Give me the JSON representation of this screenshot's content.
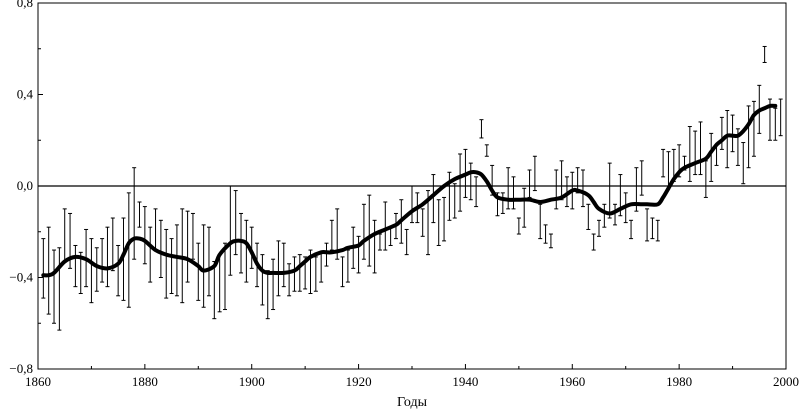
{
  "chart_data": {
    "type": "line",
    "title": "",
    "xlabel": "Годы",
    "ylabel": "",
    "xlim": [
      1860,
      2000
    ],
    "ylim": [
      -0.8,
      0.8
    ],
    "grid": false,
    "reference_line_y": 0.0,
    "x_ticks": [
      1860,
      1880,
      1900,
      1920,
      1940,
      1960,
      1980,
      2000
    ],
    "x_tick_labels": [
      "1860",
      "1880",
      "1900",
      "1920",
      "1940",
      "1960",
      "1980",
      "2000"
    ],
    "y_ticks": [
      -0.8,
      -0.4,
      0.0,
      0.4,
      0.8
    ],
    "y_tick_labels": [
      "−0,8",
      "−0,4",
      "0,0",
      "0,4",
      "0,8"
    ],
    "series": [
      {
        "kind": "annual_error_bars",
        "x": [
          1861,
          1862,
          1863,
          1864,
          1865,
          1866,
          1867,
          1868,
          1869,
          1870,
          1871,
          1872,
          1873,
          1874,
          1875,
          1876,
          1877,
          1878,
          1879,
          1880,
          1881,
          1882,
          1883,
          1884,
          1885,
          1886,
          1887,
          1888,
          1889,
          1890,
          1891,
          1892,
          1893,
          1894,
          1895,
          1896,
          1897,
          1898,
          1899,
          1900,
          1901,
          1902,
          1903,
          1904,
          1905,
          1906,
          1907,
          1908,
          1909,
          1910,
          1911,
          1912,
          1913,
          1914,
          1915,
          1916,
          1917,
          1918,
          1919,
          1920,
          1921,
          1922,
          1923,
          1924,
          1925,
          1926,
          1927,
          1928,
          1929,
          1930,
          1931,
          1932,
          1933,
          1934,
          1935,
          1936,
          1937,
          1938,
          1939,
          1940,
          1941,
          1942,
          1943,
          1944,
          1945,
          1946,
          1947,
          1948,
          1949,
          1950,
          1951,
          1952,
          1953,
          1954,
          1955,
          1956,
          1957,
          1958,
          1959,
          1960,
          1961,
          1962,
          1963,
          1964,
          1965,
          1966,
          1967,
          1968,
          1969,
          1970,
          1971,
          1972,
          1973,
          1974,
          1975,
          1976,
          1977,
          1978,
          1979,
          1980,
          1981,
          1982,
          1983,
          1984,
          1985,
          1986,
          1987,
          1988,
          1989,
          1990,
          1991,
          1992,
          1993,
          1994,
          1995,
          1996,
          1997,
          1998,
          1999
        ],
        "low": [
          -0.49,
          -0.56,
          -0.6,
          -0.63,
          -0.33,
          -0.36,
          -0.44,
          -0.47,
          -0.44,
          -0.51,
          -0.46,
          -0.42,
          -0.44,
          -0.37,
          -0.48,
          -0.5,
          -0.53,
          -0.32,
          -0.18,
          -0.34,
          -0.42,
          -0.28,
          -0.4,
          -0.49,
          -0.47,
          -0.48,
          -0.51,
          -0.42,
          -0.32,
          -0.5,
          -0.53,
          -0.48,
          -0.58,
          -0.55,
          -0.54,
          -0.39,
          -0.3,
          -0.38,
          -0.42,
          -0.36,
          -0.44,
          -0.52,
          -0.58,
          -0.54,
          -0.48,
          -0.44,
          -0.48,
          -0.46,
          -0.46,
          -0.45,
          -0.47,
          -0.46,
          -0.42,
          -0.35,
          -0.28,
          -0.32,
          -0.44,
          -0.42,
          -0.36,
          -0.38,
          -0.32,
          -0.35,
          -0.38,
          -0.28,
          -0.28,
          -0.26,
          -0.23,
          -0.25,
          -0.3,
          -0.16,
          -0.16,
          -0.22,
          -0.3,
          -0.16,
          -0.26,
          -0.24,
          -0.15,
          -0.14,
          -0.11,
          -0.05,
          -0.06,
          -0.09,
          0.21,
          0.13,
          -0.04,
          -0.13,
          -0.12,
          -0.1,
          -0.1,
          -0.21,
          -0.18,
          -0.05,
          -0.02,
          -0.23,
          -0.25,
          -0.27,
          -0.1,
          -0.06,
          -0.09,
          -0.1,
          -0.03,
          -0.09,
          -0.19,
          -0.28,
          -0.22,
          -0.18,
          -0.14,
          -0.17,
          -0.13,
          -0.16,
          -0.23,
          -0.11,
          -0.04,
          -0.24,
          -0.23,
          -0.24,
          0.04,
          -0.01,
          0.02,
          0.04,
          0.07,
          0.02,
          0.05,
          0.05,
          -0.05,
          0.02,
          0.09,
          0.16,
          0.08,
          0.15,
          0.09,
          0.01,
          0.08,
          0.13,
          0.23,
          0.54,
          0.2,
          0.2,
          0.22
        ],
        "high": [
          -0.23,
          -0.18,
          -0.28,
          -0.27,
          -0.1,
          -0.12,
          -0.26,
          -0.29,
          -0.19,
          -0.23,
          -0.27,
          -0.23,
          -0.18,
          -0.14,
          -0.26,
          -0.14,
          -0.03,
          0.08,
          -0.07,
          -0.09,
          -0.18,
          -0.1,
          -0.15,
          -0.19,
          -0.23,
          -0.17,
          -0.1,
          -0.11,
          -0.12,
          -0.25,
          -0.17,
          -0.18,
          -0.33,
          -0.3,
          -0.25,
          -0.0,
          -0.02,
          -0.12,
          -0.15,
          -0.18,
          -0.25,
          -0.3,
          -0.37,
          -0.32,
          -0.24,
          -0.25,
          -0.34,
          -0.31,
          -0.3,
          -0.31,
          -0.28,
          -0.31,
          -0.29,
          -0.25,
          -0.15,
          -0.1,
          -0.31,
          -0.28,
          -0.18,
          -0.22,
          -0.08,
          -0.04,
          -0.15,
          -0.21,
          -0.07,
          -0.18,
          -0.12,
          -0.06,
          -0.19,
          0.0,
          -0.03,
          -0.1,
          -0.02,
          0.05,
          -0.06,
          -0.05,
          0.06,
          0.01,
          0.14,
          0.16,
          0.1,
          0.04,
          0.29,
          0.18,
          0.09,
          -0.03,
          -0.03,
          0.08,
          0.04,
          -0.14,
          -0.01,
          0.07,
          0.13,
          -0.08,
          -0.17,
          -0.21,
          0.07,
          0.11,
          0.04,
          0.06,
          0.08,
          0.07,
          -0.08,
          -0.21,
          -0.15,
          -0.08,
          0.1,
          -0.08,
          0.05,
          -0.03,
          -0.15,
          0.08,
          0.11,
          -0.1,
          -0.14,
          -0.15,
          0.16,
          0.15,
          0.16,
          0.18,
          0.13,
          0.26,
          0.24,
          0.28,
          0.11,
          0.23,
          0.18,
          0.3,
          0.33,
          0.31,
          0.25,
          0.19,
          0.35,
          0.37,
          0.44,
          0.61,
          0.38,
          0.34,
          0.38
        ]
      },
      {
        "kind": "smoothed",
        "x": [
          1861,
          1862,
          1863,
          1865,
          1867,
          1869,
          1871,
          1873,
          1875,
          1876,
          1877,
          1878,
          1879,
          1880,
          1882,
          1884,
          1886,
          1888,
          1890,
          1891,
          1893,
          1894,
          1896,
          1897,
          1898,
          1899,
          1900,
          1901,
          1902,
          1903,
          1904,
          1906,
          1908,
          1909,
          1910,
          1911,
          1913,
          1914,
          1915,
          1917,
          1918,
          1920,
          1921,
          1923,
          1925,
          1927,
          1928,
          1930,
          1932,
          1934,
          1936,
          1938,
          1940,
          1941,
          1942,
          1943,
          1944,
          1945,
          1946,
          1948,
          1950,
          1952,
          1954,
          1956,
          1958,
          1960,
          1961,
          1963,
          1964,
          1965,
          1967,
          1969,
          1971,
          1973,
          1974,
          1976,
          1977,
          1978,
          1979,
          1980,
          1981,
          1983,
          1985,
          1986,
          1987,
          1988,
          1989,
          1990,
          1991,
          1992,
          1993,
          1994,
          1995,
          1996,
          1997,
          1998
        ],
        "y": [
          -0.39,
          -0.39,
          -0.38,
          -0.33,
          -0.31,
          -0.32,
          -0.35,
          -0.36,
          -0.34,
          -0.3,
          -0.25,
          -0.23,
          -0.23,
          -0.24,
          -0.28,
          -0.3,
          -0.31,
          -0.32,
          -0.35,
          -0.37,
          -0.35,
          -0.3,
          -0.25,
          -0.24,
          -0.24,
          -0.25,
          -0.29,
          -0.34,
          -0.37,
          -0.38,
          -0.38,
          -0.38,
          -0.37,
          -0.35,
          -0.33,
          -0.31,
          -0.29,
          -0.29,
          -0.29,
          -0.28,
          -0.27,
          -0.26,
          -0.24,
          -0.21,
          -0.19,
          -0.17,
          -0.15,
          -0.11,
          -0.08,
          -0.04,
          0.0,
          0.03,
          0.05,
          0.06,
          0.06,
          0.05,
          0.02,
          -0.02,
          -0.05,
          -0.06,
          -0.06,
          -0.06,
          -0.07,
          -0.06,
          -0.05,
          -0.02,
          -0.02,
          -0.04,
          -0.07,
          -0.1,
          -0.12,
          -0.1,
          -0.08,
          -0.08,
          -0.08,
          -0.08,
          -0.05,
          -0.01,
          0.03,
          0.06,
          0.08,
          0.1,
          0.12,
          0.15,
          0.18,
          0.2,
          0.22,
          0.22,
          0.22,
          0.24,
          0.27,
          0.31,
          0.33,
          0.34,
          0.35,
          0.35
        ]
      }
    ]
  }
}
